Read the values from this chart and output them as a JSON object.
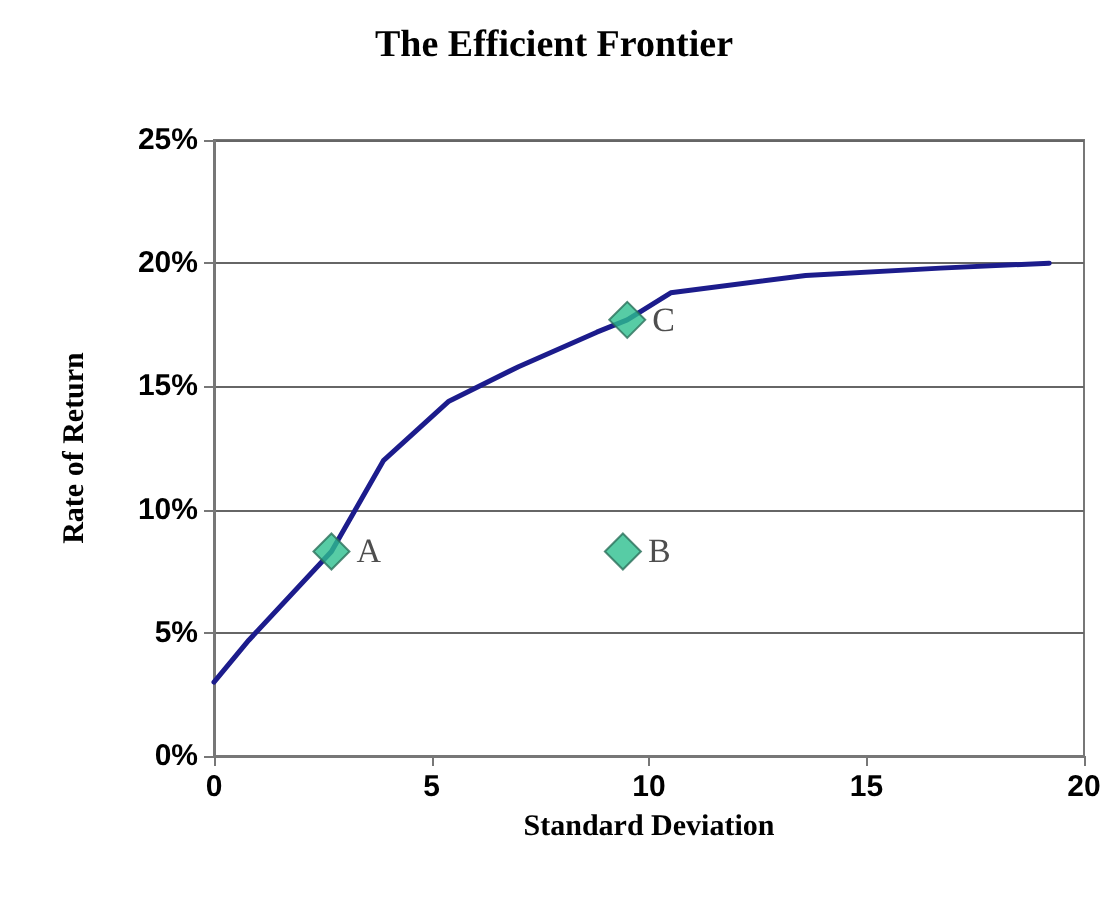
{
  "chart_data": {
    "type": "line",
    "title": "The Efficient Frontier",
    "xlabel": "Standard Deviation",
    "ylabel": "Rate of Return",
    "xlim": [
      0,
      20
    ],
    "xticks": [
      0,
      5,
      10,
      15,
      20
    ],
    "ylim": [
      0,
      25
    ],
    "yticks": [
      {
        "value": 0,
        "label": "0%"
      },
      {
        "value": 5,
        "label": "5%"
      },
      {
        "value": 10,
        "label": "10%"
      },
      {
        "value": 15,
        "label": "15%"
      },
      {
        "value": 20,
        "label": "20%"
      },
      {
        "value": 25,
        "label": "25%"
      }
    ],
    "grid": "y",
    "series": [
      {
        "color": "#1c1c8c",
        "marker": "none",
        "line_style": "solid",
        "x": [
          0,
          0.8,
          2.7,
          3.9,
          5.4,
          7.0,
          8.8,
          9.5,
          10.5,
          13.6,
          16.7,
          19.2
        ],
        "values": [
          3.0,
          4.7,
          8.3,
          12.0,
          14.4,
          15.8,
          17.2,
          17.7,
          18.8,
          19.5,
          19.8,
          20.0
        ]
      },
      {
        "type": "scatter",
        "color": "#2dbf8f",
        "marker": "diamond",
        "x": [
          2.7,
          9.4,
          9.5
        ],
        "values": [
          8.3,
          8.3,
          17.7
        ],
        "value_labels": [
          "A",
          "B",
          "C"
        ]
      }
    ]
  }
}
